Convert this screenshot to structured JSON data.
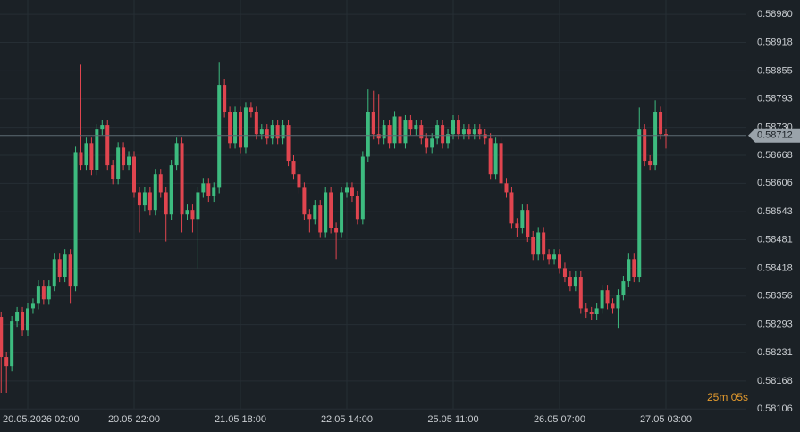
{
  "chart_data": {
    "type": "candlestick",
    "up_color": "#3dbb7f",
    "down_color": "#e0454f",
    "grid": true,
    "categories": [
      null,
      null,
      null,
      null,
      null,
      "20.05.2026 02:00",
      null,
      null,
      null,
      null,
      null,
      null,
      null,
      null,
      null,
      null,
      null,
      null,
      null,
      null,
      null,
      null,
      null,
      null,
      null,
      "20.05 22:00",
      null,
      null,
      null,
      null,
      null,
      null,
      null,
      null,
      null,
      null,
      null,
      null,
      null,
      null,
      null,
      null,
      null,
      null,
      null,
      "21.05 18:00",
      null,
      null,
      null,
      null,
      null,
      null,
      null,
      null,
      null,
      null,
      null,
      null,
      null,
      null,
      null,
      null,
      null,
      null,
      null,
      "22.05 14:00",
      null,
      null,
      null,
      null,
      null,
      null,
      null,
      null,
      null,
      null,
      null,
      null,
      null,
      null,
      null,
      null,
      null,
      null,
      null,
      "25.05 11:00",
      null,
      null,
      null,
      null,
      null,
      null,
      null,
      null,
      null,
      null,
      null,
      null,
      null,
      null,
      null,
      null,
      null,
      null,
      null,
      "26.05 07:00",
      null,
      null,
      null,
      null,
      null,
      null,
      null,
      null,
      null,
      null,
      null,
      null,
      null,
      null,
      null,
      null,
      null,
      null,
      null,
      "27.05 03:00"
    ],
    "open": [
      0.5831,
      0.58221,
      0.58201,
      0.583,
      0.5832,
      0.5828,
      0.58329,
      0.58339,
      0.58379,
      0.58349,
      0.58379,
      0.58438,
      0.58399,
      0.58448,
      0.58379,
      0.58675,
      0.58646,
      0.58695,
      0.58636,
      0.58725,
      0.58735,
      0.58646,
      0.58616,
      0.58685,
      0.58646,
      0.58665,
      0.58586,
      0.58557,
      0.58586,
      0.58547,
      0.58626,
      0.58586,
      0.58537,
      0.58646,
      0.58695,
      0.58537,
      0.58547,
      0.58527,
      0.58586,
      0.58606,
      0.58577,
      0.58596,
      0.58824,
      0.58764,
      0.58695,
      0.58764,
      0.58685,
      0.58774,
      0.58764,
      0.58715,
      0.58725,
      0.58705,
      0.58735,
      0.58705,
      0.58735,
      0.58656,
      0.58626,
      0.58596,
      0.58537,
      0.58527,
      0.58557,
      0.58497,
      0.58586,
      0.58507,
      0.58497,
      0.58586,
      0.58596,
      0.58577,
      0.58527,
      0.58665,
      0.58764,
      0.58715,
      0.58705,
      0.58735,
      0.58695,
      0.58754,
      0.58695,
      0.58745,
      0.58725,
      0.58735,
      0.58705,
      0.58685,
      0.58705,
      0.58735,
      0.58695,
      0.58715,
      0.58745,
      0.58715,
      0.58725,
      0.58715,
      0.58725,
      0.58715,
      0.58705,
      0.58626,
      0.58695,
      0.58606,
      0.58586,
      0.58517,
      0.58507,
      0.58547,
      0.58488,
      0.58448,
      0.58497,
      0.58448,
      0.58438,
      0.58448,
      0.58418,
      0.58399,
      0.58379,
      0.58399,
      0.58329,
      0.5832,
      0.58316,
      0.58329,
      0.58369,
      0.58339,
      0.58329,
      0.58359,
      0.58389,
      0.58438,
      0.58399,
      0.58725,
      0.58656,
      0.58646,
      0.58764,
      0.58715
    ],
    "high": [
      0.58322,
      0.58233,
      0.58312,
      0.58332,
      0.58332,
      0.58341,
      0.58351,
      0.58391,
      0.58391,
      0.58391,
      0.5845,
      0.5845,
      0.5846,
      0.5846,
      0.58687,
      0.58869,
      0.58707,
      0.58707,
      0.58737,
      0.58747,
      0.58747,
      0.58658,
      0.58697,
      0.58697,
      0.58677,
      0.58677,
      0.58598,
      0.58598,
      0.58598,
      0.58638,
      0.58638,
      0.58598,
      0.58658,
      0.58707,
      0.58707,
      0.58559,
      0.58559,
      0.58598,
      0.58618,
      0.58618,
      0.58608,
      0.58873,
      0.58836,
      0.58776,
      0.58776,
      0.58776,
      0.58786,
      0.58786,
      0.58776,
      0.58737,
      0.58737,
      0.58747,
      0.58747,
      0.58747,
      0.58747,
      0.58668,
      0.58638,
      0.58608,
      0.58549,
      0.58569,
      0.58569,
      0.58598,
      0.58598,
      0.58519,
      0.58598,
      0.58608,
      0.58608,
      0.58589,
      0.58677,
      0.58814,
      0.58811,
      0.58804,
      0.58747,
      0.58747,
      0.58766,
      0.58766,
      0.58757,
      0.58757,
      0.58747,
      0.58747,
      0.58717,
      0.58717,
      0.58747,
      0.58747,
      0.58727,
      0.58757,
      0.58757,
      0.58737,
      0.58737,
      0.58737,
      0.58737,
      0.58727,
      0.58717,
      0.58707,
      0.58707,
      0.58618,
      0.58598,
      0.58529,
      0.58559,
      0.58559,
      0.585,
      0.58509,
      0.58509,
      0.5846,
      0.5846,
      0.5846,
      0.5843,
      0.58411,
      0.58411,
      0.58411,
      0.58341,
      0.58332,
      0.58341,
      0.58381,
      0.58381,
      0.58351,
      0.58371,
      0.58401,
      0.5845,
      0.5845,
      0.58774,
      0.58737,
      0.58668,
      0.5879,
      0.58776,
      0.58727
    ],
    "low": [
      0.58142,
      0.58142,
      0.58189,
      0.58288,
      0.58268,
      0.58268,
      0.58317,
      0.58327,
      0.58337,
      0.58337,
      0.58367,
      0.58387,
      0.58387,
      0.58339,
      0.58367,
      0.58634,
      0.58634,
      0.58624,
      0.58624,
      0.58713,
      0.58634,
      0.58604,
      0.58604,
      0.58634,
      0.58634,
      0.58574,
      0.58497,
      0.58545,
      0.58535,
      0.58535,
      0.58574,
      0.58477,
      0.58525,
      0.58634,
      0.58497,
      0.58525,
      0.58497,
      0.58418,
      0.58574,
      0.58565,
      0.58565,
      0.58584,
      0.58752,
      0.58683,
      0.58683,
      0.58673,
      0.58673,
      0.58752,
      0.58703,
      0.58703,
      0.58693,
      0.58693,
      0.58693,
      0.58693,
      0.58644,
      0.58614,
      0.58584,
      0.58525,
      0.58497,
      0.58515,
      0.58485,
      0.58485,
      0.58495,
      0.58438,
      0.58485,
      0.58574,
      0.58565,
      0.58515,
      0.58515,
      0.58653,
      0.58703,
      0.58693,
      0.58693,
      0.58683,
      0.58683,
      0.58683,
      0.58683,
      0.58713,
      0.58713,
      0.58693,
      0.58673,
      0.58673,
      0.58693,
      0.58683,
      0.58683,
      0.58703,
      0.58703,
      0.58703,
      0.58703,
      0.58703,
      0.58703,
      0.58693,
      0.58614,
      0.58614,
      0.58594,
      0.58574,
      0.58505,
      0.58488,
      0.58495,
      0.58476,
      0.58436,
      0.58436,
      0.58436,
      0.58426,
      0.58426,
      0.58406,
      0.58387,
      0.58367,
      0.58367,
      0.58317,
      0.58308,
      0.58304,
      0.58304,
      0.58317,
      0.58327,
      0.58317,
      0.58284,
      0.58347,
      0.58377,
      0.58387,
      0.58387,
      0.58644,
      0.58634,
      0.58634,
      0.58703,
      0.58683
    ],
    "close": [
      0.58221,
      0.58201,
      0.583,
      0.5832,
      0.5828,
      0.58329,
      0.58339,
      0.58379,
      0.58349,
      0.58379,
      0.58438,
      0.58399,
      0.58448,
      0.58379,
      0.58675,
      0.58646,
      0.58695,
      0.58636,
      0.58725,
      0.58735,
      0.58646,
      0.58616,
      0.58685,
      0.58646,
      0.58665,
      0.58586,
      0.58557,
      0.58586,
      0.58547,
      0.58626,
      0.58586,
      0.58537,
      0.58646,
      0.58695,
      0.58537,
      0.58547,
      0.58527,
      0.58586,
      0.58606,
      0.58577,
      0.58596,
      0.58824,
      0.58764,
      0.58695,
      0.58764,
      0.58685,
      0.58774,
      0.58764,
      0.58715,
      0.58725,
      0.58705,
      0.58735,
      0.58705,
      0.58735,
      0.58656,
      0.58626,
      0.58596,
      0.58537,
      0.58527,
      0.58557,
      0.58497,
      0.58586,
      0.58507,
      0.58497,
      0.58586,
      0.58596,
      0.58577,
      0.58527,
      0.58665,
      0.58764,
      0.58715,
      0.58705,
      0.58735,
      0.58695,
      0.58754,
      0.58695,
      0.58745,
      0.58725,
      0.58735,
      0.58705,
      0.58685,
      0.58705,
      0.58735,
      0.58695,
      0.58715,
      0.58745,
      0.58715,
      0.58725,
      0.58715,
      0.58725,
      0.58715,
      0.58705,
      0.58626,
      0.58695,
      0.58606,
      0.58586,
      0.58517,
      0.58507,
      0.58547,
      0.58488,
      0.58448,
      0.58497,
      0.58448,
      0.58438,
      0.58448,
      0.58418,
      0.58399,
      0.58379,
      0.58399,
      0.58329,
      0.5832,
      0.58316,
      0.58329,
      0.58369,
      0.58339,
      0.58329,
      0.58359,
      0.58389,
      0.58438,
      0.58399,
      0.58725,
      0.58656,
      0.58646,
      0.58764,
      0.58715,
      0.58712
    ],
    "ylim": [
      0.58055,
      0.59012
    ],
    "yticks": [
      {
        "value": 0.5898,
        "label": "0.58980"
      },
      0.58918,
      0.58855,
      0.58793,
      {
        "value": 0.5873,
        "label": "0.58730"
      },
      0.58668,
      0.58606,
      0.58543,
      0.58481,
      0.58418,
      0.58356,
      0.58293,
      0.58231,
      0.58168,
      0.58106
    ],
    "last_price": 0.58712,
    "countdown": {
      "minutes": "25m",
      "seconds": "05s"
    }
  }
}
